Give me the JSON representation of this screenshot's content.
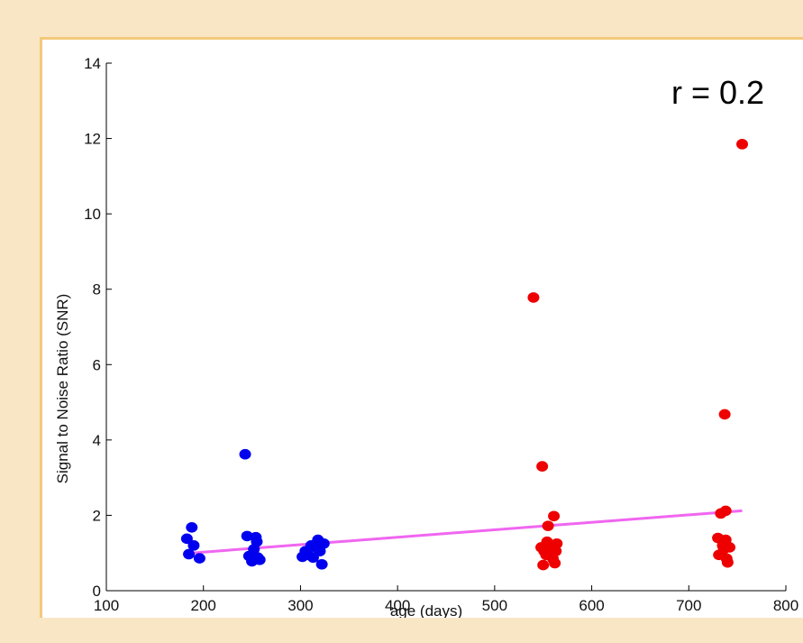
{
  "chart_data": {
    "type": "scatter",
    "xlabel": "age (days)",
    "ylabel": "Signal to Noise Ratio (SNR)",
    "xlim": [
      100,
      800
    ],
    "ylim": [
      0,
      14
    ],
    "xticks": [
      "100",
      "200",
      "300",
      "400",
      "500",
      "600",
      "700",
      "800"
    ],
    "yticks": [
      "0",
      "2",
      "4",
      "6",
      "8",
      "10",
      "12",
      "14"
    ],
    "annotation": "r = 0.2",
    "grid": false,
    "series": [
      {
        "color": "#0000ee",
        "points": [
          [
            183,
            1.38
          ],
          [
            185,
            0.97
          ],
          [
            188,
            1.68
          ],
          [
            190,
            1.2
          ],
          [
            196,
            0.86
          ],
          [
            243,
            3.62
          ],
          [
            245,
            1.45
          ],
          [
            247,
            0.92
          ],
          [
            250,
            0.78
          ],
          [
            252,
            1.1
          ],
          [
            254,
            1.42
          ],
          [
            256,
            0.88
          ],
          [
            258,
            0.82
          ],
          [
            255,
            1.3
          ],
          [
            302,
            0.9
          ],
          [
            305,
            1.05
          ],
          [
            308,
            0.95
          ],
          [
            311,
            1.2
          ],
          [
            313,
            0.88
          ],
          [
            316,
            1.15
          ],
          [
            318,
            1.35
          ],
          [
            320,
            1.05
          ],
          [
            322,
            0.7
          ],
          [
            324,
            1.25
          ]
        ]
      },
      {
        "color": "#ee0000",
        "points": [
          [
            540,
            7.78
          ],
          [
            549,
            3.3
          ],
          [
            548,
            1.15
          ],
          [
            550,
            0.68
          ],
          [
            551,
            1.05
          ],
          [
            553,
            0.95
          ],
          [
            554,
            1.3
          ],
          [
            555,
            1.72
          ],
          [
            556,
            1.0
          ],
          [
            558,
            1.22
          ],
          [
            560,
            0.85
          ],
          [
            561,
            1.98
          ],
          [
            562,
            0.73
          ],
          [
            563,
            1.05
          ],
          [
            564,
            1.25
          ],
          [
            730,
            1.4
          ],
          [
            731,
            0.95
          ],
          [
            733,
            2.05
          ],
          [
            735,
            1.2
          ],
          [
            736,
            1.1
          ],
          [
            737,
            4.68
          ],
          [
            738,
            1.35
          ],
          [
            738,
            2.12
          ],
          [
            739,
            0.85
          ],
          [
            740,
            0.75
          ],
          [
            742,
            1.15
          ],
          [
            755,
            11.85
          ]
        ]
      }
    ],
    "fit_line": {
      "color": "#f066f0",
      "points": [
        [
          188,
          1.0
        ],
        [
          755,
          2.12
        ]
      ]
    }
  }
}
